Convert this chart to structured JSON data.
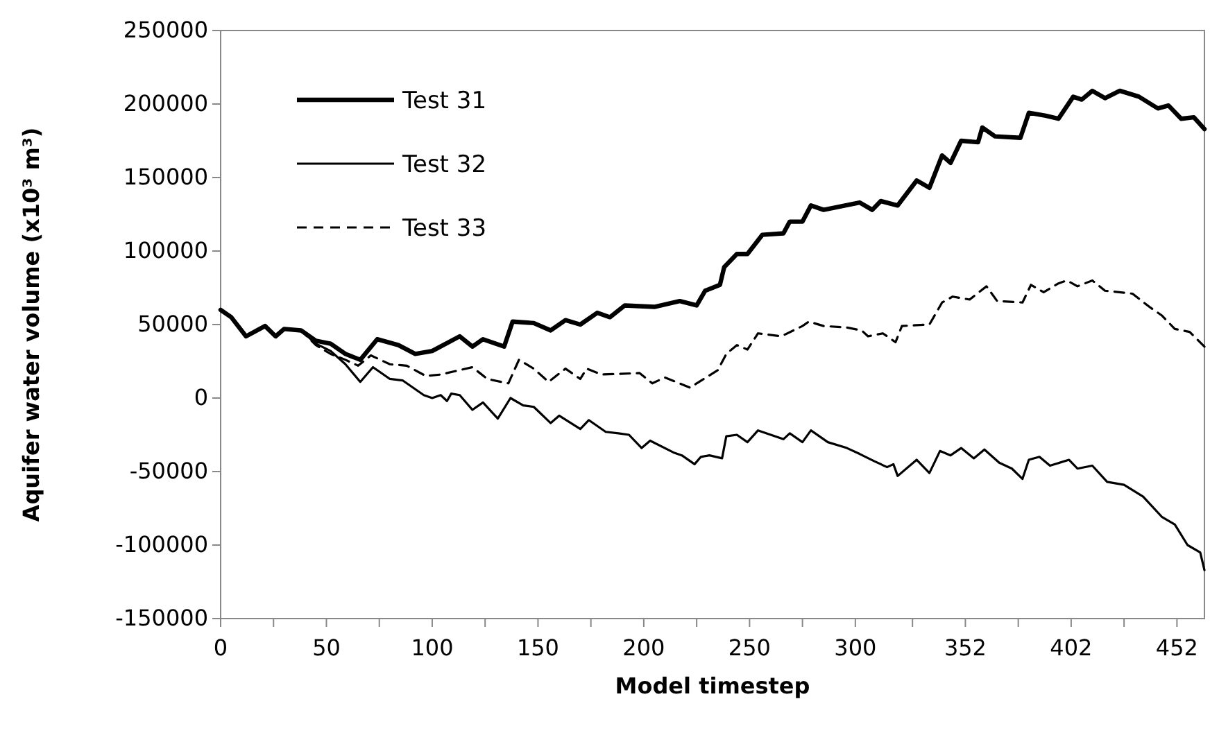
{
  "chart_data": {
    "type": "line",
    "xlabel": "Model timestep",
    "ylabel": "Aquifer water volume (x10³ m³)",
    "xlim": [
      0,
      465
    ],
    "ylim": [
      -150000,
      250000
    ],
    "xticks": [
      0,
      {
        "value": 25,
        "label": null
      },
      50,
      {
        "value": 75,
        "label": null
      },
      100,
      {
        "value": 125,
        "label": null
      },
      150,
      {
        "value": 175,
        "label": null
      },
      200,
      {
        "value": 225,
        "label": null
      },
      250,
      {
        "value": 275,
        "label": null
      },
      300,
      {
        "value": 327,
        "label": null
      },
      352,
      {
        "value": 377,
        "label": null
      },
      402,
      {
        "value": 427,
        "label": null
      },
      452
    ],
    "yticks": [
      -150000,
      -100000,
      -50000,
      0,
      50000,
      100000,
      150000,
      200000,
      250000
    ],
    "grid": false,
    "legend": "top left",
    "marker": "none",
    "series": [
      {
        "name": "Test 31",
        "color": "#000000",
        "line_style": "solid",
        "x": [
          0,
          5,
          12,
          21,
          26,
          30,
          38,
          45,
          52,
          59,
          66,
          74,
          84,
          92,
          100,
          113,
          119,
          124,
          134,
          138,
          148,
          156,
          163,
          170,
          178,
          184,
          191,
          205,
          217,
          225,
          229,
          236,
          238,
          244,
          249,
          256,
          266,
          269,
          275,
          279,
          285,
          302,
          308,
          312,
          320,
          329,
          335,
          341,
          345,
          350,
          358,
          360,
          366,
          378,
          382,
          390,
          396,
          403,
          407,
          412,
          418,
          425,
          434,
          443,
          448,
          454,
          460,
          465
        ],
        "values": [
          60000,
          55000,
          42000,
          49000,
          42000,
          47000,
          46000,
          39000,
          37000,
          30000,
          26000,
          40000,
          36000,
          30000,
          32000,
          42000,
          35000,
          40000,
          35000,
          52000,
          51000,
          46000,
          53000,
          50000,
          58000,
          55000,
          63000,
          62000,
          66000,
          63000,
          73000,
          77000,
          89000,
          98000,
          98000,
          111000,
          112000,
          120000,
          120000,
          131000,
          128000,
          133000,
          128000,
          134000,
          131000,
          148000,
          143000,
          165000,
          160000,
          175000,
          174000,
          184000,
          178000,
          177000,
          194000,
          192000,
          190000,
          205000,
          203000,
          209000,
          204000,
          209000,
          205000,
          197000,
          199000,
          190000,
          191000,
          183000
        ]
      },
      {
        "name": "Test 32",
        "color": "#000000",
        "line_style": "solid",
        "x": [
          0,
          5,
          12,
          21,
          26,
          30,
          38,
          45,
          52,
          59,
          66,
          72,
          80,
          86,
          96,
          100,
          104,
          107,
          109,
          113,
          119,
          124,
          131,
          137,
          143,
          148,
          156,
          160,
          170,
          174,
          182,
          188,
          193,
          199,
          203,
          214,
          218,
          224,
          227,
          231,
          237,
          239,
          244,
          249,
          254,
          266,
          269,
          275,
          279,
          287,
          296,
          302,
          309,
          315,
          318,
          320,
          329,
          335,
          340,
          345,
          350,
          356,
          361,
          368,
          374,
          379,
          382,
          387,
          392,
          401,
          405,
          412,
          419,
          427,
          436,
          445,
          451,
          457,
          463,
          465
        ],
        "values": [
          60000,
          55000,
          42000,
          49000,
          42000,
          47000,
          46000,
          37000,
          32000,
          23000,
          11000,
          21000,
          13000,
          12000,
          2000,
          0,
          2000,
          -2000,
          3000,
          2000,
          -8000,
          -3000,
          -14000,
          0,
          -5000,
          -6000,
          -17000,
          -12000,
          -21000,
          -15000,
          -23000,
          -24000,
          -25000,
          -34000,
          -29000,
          -37000,
          -39000,
          -45000,
          -40000,
          -39000,
          -41000,
          -26000,
          -25000,
          -30000,
          -22000,
          -28000,
          -24000,
          -30000,
          -22000,
          -30000,
          -34000,
          -38000,
          -43000,
          -47000,
          -45000,
          -53000,
          -42000,
          -51000,
          -36000,
          -39000,
          -34000,
          -41000,
          -35000,
          -44000,
          -48000,
          -55000,
          -42000,
          -40000,
          -46000,
          -42000,
          -48000,
          -46000,
          -57000,
          -59000,
          -67000,
          -81000,
          -86000,
          -100000,
          -105000,
          -117000
        ]
      },
      {
        "name": "Test 33",
        "color": "#000000",
        "line_style": "dashed",
        "x": [
          0,
          5,
          12,
          21,
          26,
          30,
          38,
          45,
          52,
          59,
          65,
          71,
          80,
          88,
          97,
          104,
          119,
          126,
          136,
          141,
          148,
          155,
          163,
          170,
          173,
          180,
          198,
          204,
          210,
          222,
          225,
          235,
          239,
          244,
          249,
          254,
          265,
          275,
          278,
          285,
          296,
          303,
          306,
          313,
          319,
          322,
          335,
          341,
          346,
          354,
          362,
          367,
          379,
          383,
          389,
          396,
          400,
          405,
          412,
          418,
          431,
          439,
          445,
          451,
          458,
          465
        ],
        "values": [
          60000,
          55000,
          42000,
          49000,
          42000,
          47000,
          46000,
          36000,
          30000,
          26000,
          22000,
          29000,
          23000,
          22000,
          15000,
          16000,
          21000,
          13000,
          10000,
          26000,
          20000,
          11000,
          20000,
          13000,
          20000,
          16000,
          17000,
          10000,
          14000,
          7000,
          10000,
          19000,
          30000,
          36000,
          33000,
          44000,
          42000,
          49000,
          52000,
          49000,
          48000,
          46000,
          42000,
          44000,
          38000,
          49000,
          50000,
          65000,
          69000,
          67000,
          76000,
          66000,
          65000,
          77000,
          72000,
          78000,
          80000,
          76000,
          80000,
          73000,
          71000,
          62000,
          56000,
          47000,
          45000,
          35000
        ]
      }
    ]
  }
}
